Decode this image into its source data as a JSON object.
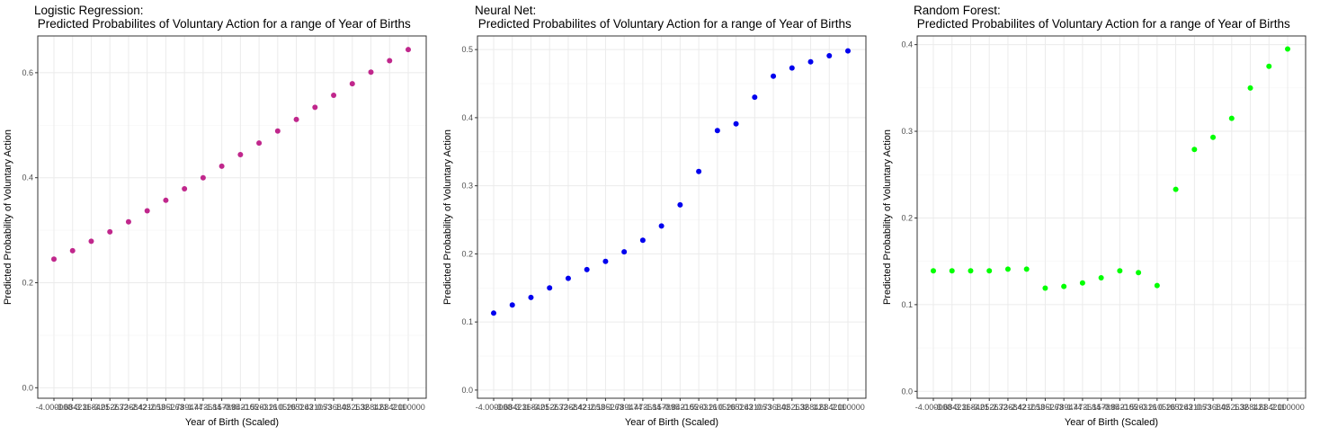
{
  "chart_data": [
    {
      "type": "scatter",
      "title_line1": "Logistic Regression:",
      "title_line2": " Predicted Probabilites of Voluntary Action for a range of Year of Births",
      "xlabel": "Year of Birth (Scaled)",
      "ylabel": "Predicted Probability of Voluntary Action",
      "ylim": [
        -0.02,
        0.67
      ],
      "yticks": [
        0.0,
        0.2,
        0.4,
        0.6
      ],
      "ytick_labels": [
        "0.0",
        "0.2",
        "0.4",
        "0.6"
      ],
      "color": "#C0278C",
      "x_labels": [
        "-4.000000",
        "-3.684211",
        "-3.368421",
        "-3.052632",
        "-2.736842",
        "-2.421053",
        "-2.105263",
        "-1.789474",
        "-1.473684",
        "-1.157895",
        "-0.842105",
        "-0.526316",
        "-0.210526",
        "0.105263",
        "0.421053",
        "0.736842",
        "1.052632",
        "1.368421",
        "1.684211",
        "2.000000"
      ],
      "values": [
        0.245,
        0.261,
        0.279,
        0.297,
        0.316,
        0.337,
        0.357,
        0.379,
        0.4,
        0.422,
        0.444,
        0.466,
        0.489,
        0.511,
        0.534,
        0.557,
        0.579,
        0.601,
        0.623,
        0.644
      ]
    },
    {
      "type": "scatter",
      "title_line1": "Neural Net:",
      "title_line2": " Predicted Probabilites of Voluntary Action for a range of Year of Births",
      "xlabel": "Year of Birth (Scaled)",
      "ylabel": "Predicted Probability of Voluntary Action",
      "ylim": [
        -0.012,
        0.52
      ],
      "yticks": [
        0.0,
        0.1,
        0.2,
        0.3,
        0.4,
        0.5
      ],
      "ytick_labels": [
        "0.0",
        "0.1",
        "0.2",
        "0.3",
        "0.4",
        "0.5"
      ],
      "color": "#0000EE",
      "x_labels": [
        "-4.000000",
        "-3.684211",
        "-3.368421",
        "-3.052632",
        "-2.736842",
        "-2.421053",
        "-2.105263",
        "-1.789474",
        "-1.473684",
        "-1.157895",
        "-0.842105",
        "-0.526316",
        "-0.210526",
        "0.105263",
        "0.421053",
        "0.736842",
        "1.052632",
        "1.368421",
        "1.684211",
        "2.000000"
      ],
      "values": [
        0.113,
        0.125,
        0.136,
        0.15,
        0.164,
        0.177,
        0.189,
        0.203,
        0.22,
        0.241,
        0.272,
        0.321,
        0.381,
        0.391,
        0.43,
        0.461,
        0.473,
        0.482,
        0.491,
        0.498
      ]
    },
    {
      "type": "scatter",
      "title_line1": "Random Forest:",
      "title_line2": " Predicted Probabilites of Voluntary Action for a range of Year of Births",
      "xlabel": "Year of Birth (Scaled)",
      "ylabel": "Predicted Probability of Voluntary Action",
      "ylim": [
        -0.008,
        0.41
      ],
      "yticks": [
        0.0,
        0.1,
        0.2,
        0.3,
        0.4
      ],
      "ytick_labels": [
        "0.0",
        "0.1",
        "0.2",
        "0.3",
        "0.4"
      ],
      "color": "#00FF00",
      "x_labels": [
        "-4.000000",
        "-3.684211",
        "-3.368421",
        "-3.052632",
        "-2.736842",
        "-2.421053",
        "-2.105263",
        "-1.789474",
        "-1.473684",
        "-1.157895",
        "-0.842105",
        "-0.526316",
        "-0.210526",
        "0.105263",
        "0.421053",
        "0.736842",
        "1.052632",
        "1.368421",
        "1.684211",
        "2.000000"
      ],
      "values": [
        0.139,
        0.139,
        0.139,
        0.139,
        0.141,
        0.141,
        0.119,
        0.121,
        0.125,
        0.131,
        0.139,
        0.137,
        0.122,
        0.233,
        0.279,
        0.293,
        0.315,
        0.35,
        0.375,
        0.395
      ]
    }
  ]
}
